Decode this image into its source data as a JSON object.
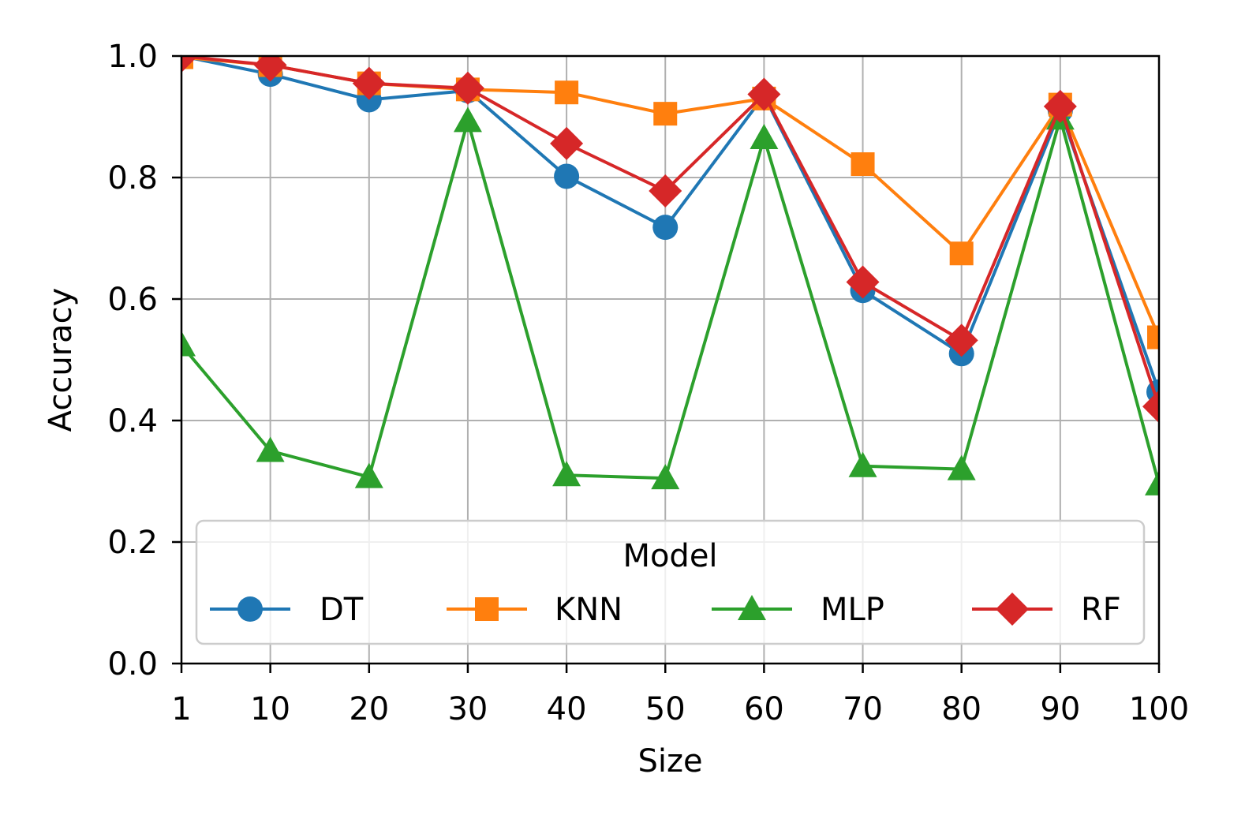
{
  "chart_data": {
    "type": "line",
    "xlabel": "Size",
    "ylabel": "Accuracy",
    "x": [
      1,
      10,
      20,
      30,
      40,
      50,
      60,
      70,
      80,
      90,
      100
    ],
    "xticks": [
      "1",
      "10",
      "20",
      "30",
      "40",
      "50",
      "60",
      "70",
      "80",
      "90",
      "100"
    ],
    "yticks": [
      "0.0",
      "0.2",
      "0.4",
      "0.6",
      "0.8",
      "1.0"
    ],
    "ylim": [
      0,
      1
    ],
    "grid": true,
    "legend": {
      "title": "Model",
      "position": "lower-center"
    },
    "series": [
      {
        "name": "DT",
        "color": "#1f77b4",
        "marker": "circle",
        "values": [
          1.0,
          0.97,
          0.928,
          0.943,
          0.802,
          0.718,
          0.935,
          0.614,
          0.51,
          0.91,
          0.447
        ]
      },
      {
        "name": "KNN",
        "color": "#ff7f0e",
        "marker": "square",
        "values": [
          0.998,
          0.985,
          0.955,
          0.945,
          0.94,
          0.905,
          0.93,
          0.822,
          0.675,
          0.92,
          0.537
        ]
      },
      {
        "name": "MLP",
        "color": "#2ca02c",
        "marker": "triangle",
        "values": [
          0.524,
          0.35,
          0.307,
          0.893,
          0.31,
          0.305,
          0.865,
          0.325,
          0.32,
          0.897,
          0.295
        ]
      },
      {
        "name": "RF",
        "color": "#d62728",
        "marker": "diamond",
        "values": [
          1.0,
          0.985,
          0.955,
          0.947,
          0.856,
          0.778,
          0.937,
          0.628,
          0.532,
          0.917,
          0.423
        ]
      }
    ]
  }
}
